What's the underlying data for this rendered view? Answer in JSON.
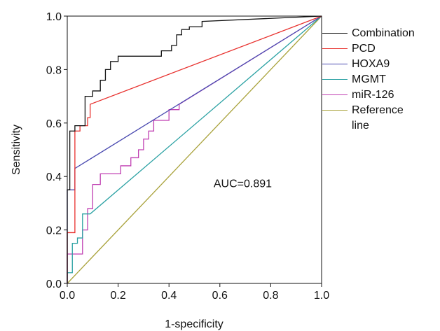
{
  "chart_data": {
    "type": "line",
    "xlabel": "1-specificity",
    "ylabel": "Sensitivity",
    "annotation": "AUC=0.891",
    "xlim": [
      0,
      1
    ],
    "ylim": [
      0,
      1
    ],
    "xticks": [
      {
        "value": 0,
        "label": "0.0"
      },
      {
        "value": 0.2,
        "label": "0.2"
      },
      {
        "value": 0.4,
        "label": "0.4"
      },
      {
        "value": 0.6,
        "label": "0.6"
      },
      {
        "value": 0.8,
        "label": "0.8"
      },
      {
        "value": 1,
        "label": "1.0"
      }
    ],
    "yticks": [
      {
        "value": 0,
        "label": "0.0"
      },
      {
        "value": 0.2,
        "label": "0.2"
      },
      {
        "value": 0.4,
        "label": "0.4"
      },
      {
        "value": 0.6,
        "label": "0.6"
      },
      {
        "value": 0.8,
        "label": "0.8"
      },
      {
        "value": 1,
        "label": "1.0"
      }
    ],
    "legend": "right",
    "series": [
      {
        "name": "Combination",
        "color": "#111111",
        "x": [
          0,
          0,
          0.01,
          0.01,
          0.03,
          0.03,
          0.07,
          0.07,
          0.1,
          0.1,
          0.13,
          0.13,
          0.15,
          0.15,
          0.17,
          0.17,
          0.2,
          0.2,
          0.37,
          0.37,
          0.41,
          0.41,
          0.43,
          0.43,
          0.45,
          0.45,
          0.48,
          0.48,
          0.53,
          0.53,
          1
        ],
        "values": [
          0,
          0.35,
          0.35,
          0.57,
          0.57,
          0.59,
          0.59,
          0.7,
          0.7,
          0.72,
          0.72,
          0.76,
          0.76,
          0.8,
          0.8,
          0.83,
          0.83,
          0.85,
          0.85,
          0.87,
          0.87,
          0.89,
          0.89,
          0.93,
          0.93,
          0.95,
          0.95,
          0.96,
          0.96,
          0.98,
          1
        ]
      },
      {
        "name": "PCD",
        "color": "#e8312e",
        "x": [
          0,
          0,
          0.03,
          0.03,
          0.05,
          0.05,
          0.08,
          0.08,
          0.09,
          0.09,
          1
        ],
        "values": [
          0,
          0.19,
          0.19,
          0.57,
          0.57,
          0.59,
          0.59,
          0.62,
          0.62,
          0.67,
          1
        ]
      },
      {
        "name": "HOXA9",
        "color": "#4a4ab0",
        "x": [
          0,
          0,
          0.03,
          0.03,
          1
        ],
        "values": [
          0,
          0.35,
          0.35,
          0.43,
          1
        ]
      },
      {
        "name": "MGMT",
        "color": "#2aa1a3",
        "x": [
          0,
          0,
          0.02,
          0.02,
          0.04,
          0.04,
          0.06,
          0.06,
          0.09,
          1
        ],
        "values": [
          0,
          0.04,
          0.04,
          0.15,
          0.15,
          0.17,
          0.17,
          0.26,
          0.26,
          1
        ]
      },
      {
        "name": "miR-126",
        "color": "#c03fb2",
        "x": [
          0,
          0,
          0.06,
          0.06,
          0.08,
          0.08,
          0.1,
          0.1,
          0.13,
          0.13,
          0.21,
          0.21,
          0.25,
          0.25,
          0.28,
          0.28,
          0.3,
          0.3,
          0.32,
          0.32,
          0.34,
          0.34,
          0.4,
          0.4,
          0.44,
          0.44,
          1
        ],
        "values": [
          0,
          0.11,
          0.11,
          0.2,
          0.2,
          0.28,
          0.28,
          0.37,
          0.37,
          0.41,
          0.41,
          0.44,
          0.44,
          0.47,
          0.47,
          0.5,
          0.5,
          0.54,
          0.54,
          0.57,
          0.57,
          0.61,
          0.61,
          0.65,
          0.65,
          0.67,
          1
        ]
      },
      {
        "name": "Reference line",
        "color": "#a9a23b",
        "x": [
          0,
          1
        ],
        "values": [
          0,
          1
        ]
      }
    ]
  }
}
